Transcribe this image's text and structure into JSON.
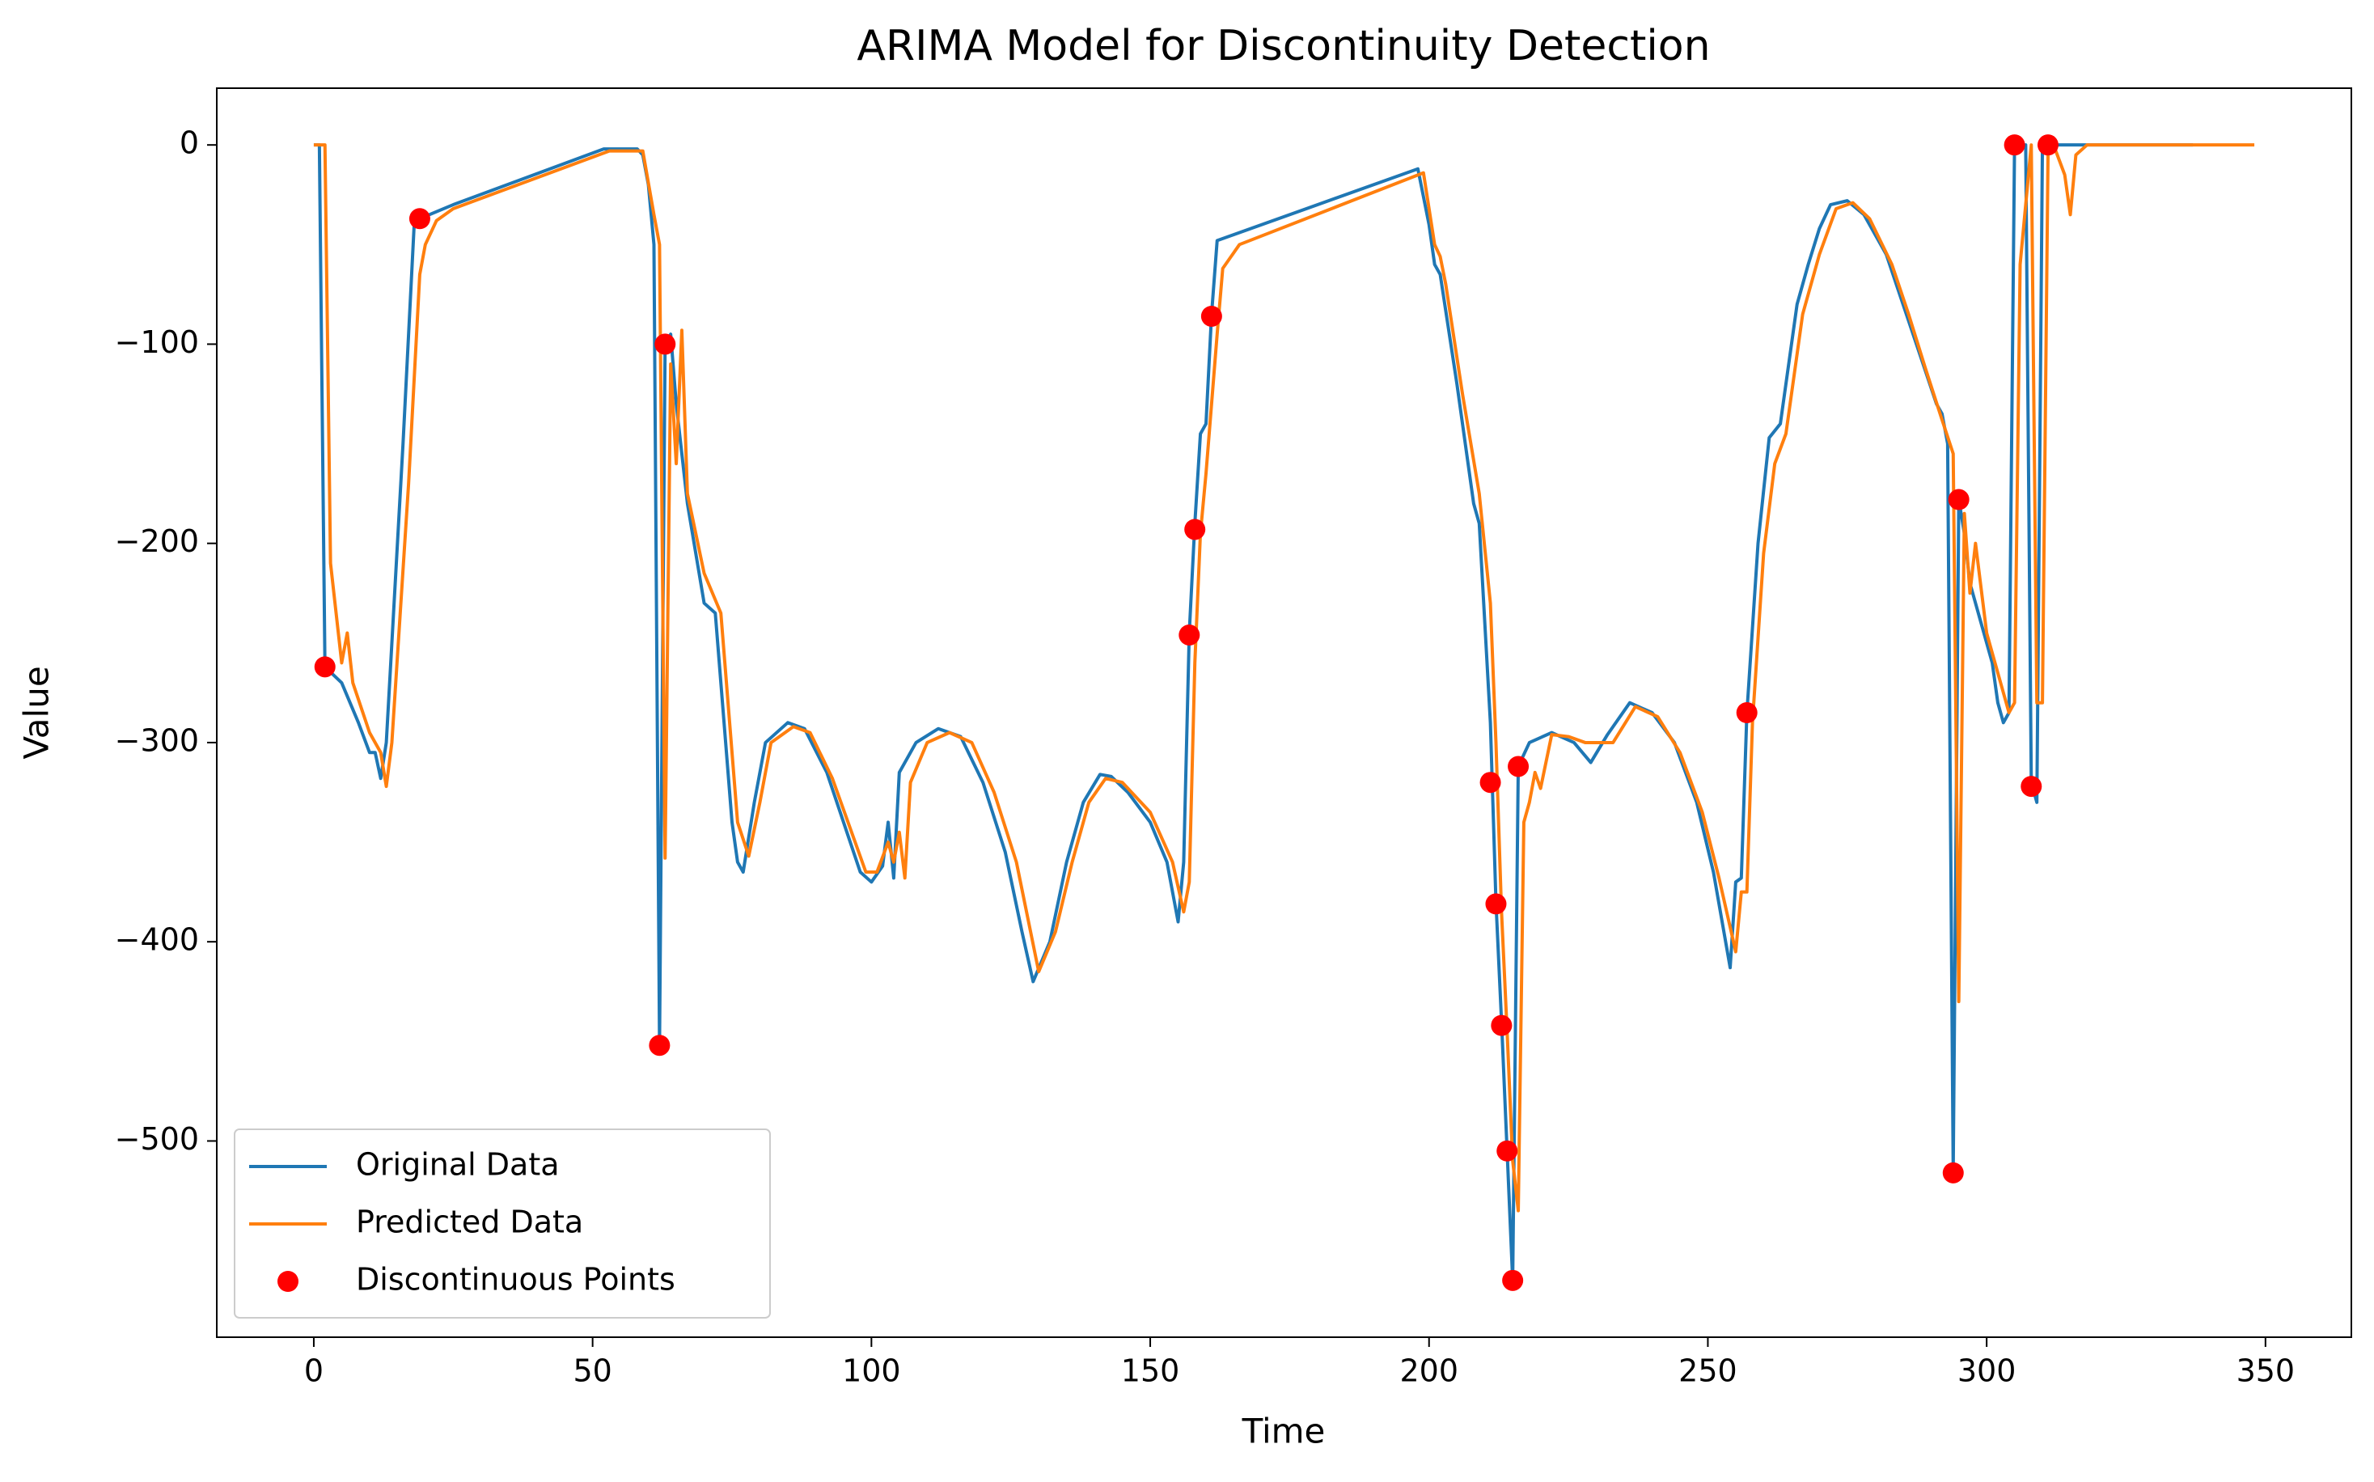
{
  "chart_data": {
    "type": "line",
    "title": "ARIMA Model for Discontinuity Detection",
    "xlabel": "Time",
    "ylabel": "Value",
    "xlim": [
      -17.4,
      365.4
    ],
    "ylim": [
      -598.5,
      28.5
    ],
    "xticks": [
      0,
      50,
      100,
      150,
      200,
      250,
      300,
      350
    ],
    "yticks": [
      {
        "value": -500,
        "label": "−500"
      },
      {
        "value": -400,
        "label": "−400"
      },
      {
        "value": -300,
        "label": "−300"
      },
      {
        "value": -200,
        "label": "−200"
      },
      {
        "value": -100,
        "label": "−100"
      },
      0
    ],
    "grid": false,
    "legend": "lower left",
    "series": [
      {
        "name": "Original Data",
        "type": "line",
        "color": "#1f77b4",
        "x": [
          0,
          1,
          2,
          5,
          8,
          10,
          11,
          12,
          13,
          16,
          18,
          19,
          25,
          52,
          58,
          59,
          60,
          61,
          62,
          63,
          64,
          65,
          67,
          70,
          72,
          75,
          76,
          77,
          79,
          81,
          85,
          88,
          92,
          95,
          98,
          100,
          102,
          103,
          104,
          105,
          108,
          112,
          116,
          120,
          124,
          127,
          129,
          132,
          135,
          138,
          141,
          143,
          146,
          150,
          153,
          155,
          156,
          157,
          158,
          159,
          160,
          161,
          162,
          165,
          198,
          200,
          201,
          202,
          205,
          208,
          209,
          211,
          212,
          213,
          214,
          215,
          216,
          218,
          222,
          226,
          229,
          232,
          236,
          240,
          244,
          248,
          251,
          254,
          255,
          256,
          257,
          259,
          261,
          263,
          266,
          268,
          270,
          272,
          275,
          278,
          282,
          285,
          288,
          291,
          292,
          293,
          294,
          295,
          296,
          297,
          299,
          301,
          302,
          303,
          304,
          305,
          306,
          307,
          308,
          309,
          310,
          311,
          320,
          337
        ],
        "values": [
          0,
          0,
          -262,
          -270,
          -290,
          -305,
          -305,
          -318,
          -300,
          -150,
          -40,
          -37,
          -30,
          -2,
          -2,
          -5,
          -20,
          -50,
          -452,
          -100,
          -95,
          -130,
          -180,
          -230,
          -235,
          -340,
          -360,
          -365,
          -330,
          -300,
          -290,
          -293,
          -315,
          -340,
          -365,
          -370,
          -362,
          -340,
          -368,
          -315,
          -300,
          -293,
          -297,
          -320,
          -355,
          -395,
          -420,
          -400,
          -360,
          -330,
          -316,
          -317,
          -325,
          -340,
          -360,
          -390,
          -360,
          -245,
          -190,
          -145,
          -140,
          -85,
          -48,
          -45,
          -12,
          -40,
          -60,
          -65,
          -120,
          -180,
          -190,
          -290,
          -380,
          -440,
          -505,
          -570,
          -312,
          -300,
          -295,
          -300,
          -310,
          -296,
          -280,
          -285,
          -300,
          -330,
          -365,
          -413,
          -370,
          -368,
          -285,
          -200,
          -147,
          -140,
          -80,
          -60,
          -42,
          -30,
          -28,
          -35,
          -55,
          -80,
          -105,
          -130,
          -135,
          -150,
          -515,
          -178,
          -195,
          -220,
          -240,
          -260,
          -280,
          -290,
          -285,
          0,
          0,
          0,
          -320,
          -330,
          0,
          0,
          0,
          0
        ]
      },
      {
        "name": "Predicted Data",
        "type": "line",
        "color": "#ff7f0e",
        "x": [
          0,
          1,
          2,
          3,
          5,
          6,
          7,
          10,
          12,
          13,
          14,
          17,
          19,
          20,
          22,
          25,
          53,
          59,
          61,
          62,
          63,
          64,
          65,
          66,
          67,
          70,
          73,
          76,
          78,
          80,
          82,
          86,
          89,
          93,
          99,
          101,
          103,
          104,
          105,
          106,
          107,
          110,
          114,
          118,
          122,
          126,
          130,
          133,
          136,
          139,
          142,
          145,
          150,
          154,
          156,
          157,
          158,
          159,
          160,
          162,
          163,
          166,
          199,
          201,
          202,
          203,
          206,
          209,
          211,
          212,
          213,
          214,
          215,
          216,
          217,
          218,
          219,
          220,
          222,
          225,
          228,
          233,
          237,
          241,
          245,
          249,
          252,
          255,
          256,
          257,
          258,
          260,
          262,
          264,
          267,
          270,
          273,
          276,
          279,
          283,
          286,
          289,
          292,
          294,
          295,
          296,
          297,
          298,
          300,
          302,
          304,
          305,
          306,
          307,
          308,
          309,
          310,
          311,
          312,
          314,
          315,
          316,
          318,
          348
        ],
        "values": [
          0,
          0,
          0,
          -210,
          -260,
          -245,
          -270,
          -295,
          -305,
          -322,
          -300,
          -170,
          -65,
          -50,
          -38,
          -32,
          -3,
          -3,
          -35,
          -50,
          -358,
          -110,
          -160,
          -93,
          -175,
          -215,
          -235,
          -340,
          -357,
          -330,
          -300,
          -292,
          -295,
          -318,
          -365,
          -365,
          -350,
          -360,
          -345,
          -368,
          -320,
          -300,
          -295,
          -300,
          -325,
          -360,
          -415,
          -395,
          -360,
          -330,
          -318,
          -320,
          -335,
          -360,
          -385,
          -370,
          -260,
          -195,
          -165,
          -95,
          -62,
          -50,
          -14,
          -50,
          -56,
          -70,
          -125,
          -175,
          -230,
          -300,
          -385,
          -445,
          -510,
          -535,
          -340,
          -330,
          -315,
          -323,
          -296,
          -297,
          -300,
          -300,
          -282,
          -287,
          -305,
          -335,
          -368,
          -405,
          -375,
          -375,
          -290,
          -205,
          -160,
          -145,
          -85,
          -55,
          -32,
          -29,
          -37,
          -60,
          -85,
          -112,
          -138,
          -155,
          -430,
          -185,
          -225,
          -200,
          -245,
          -265,
          -285,
          -280,
          -60,
          -30,
          0,
          -280,
          -280,
          -5,
          0,
          -15,
          -35,
          -5,
          0,
          0
        ]
      },
      {
        "name": "Discontinuous Points",
        "type": "scatter",
        "color": "#ff0000",
        "x": [
          2,
          19,
          62,
          63,
          157,
          158,
          161,
          211,
          212,
          213,
          214,
          215,
          216,
          257,
          294,
          295,
          305,
          308,
          311
        ],
        "values": [
          -262,
          -37,
          -452,
          -100,
          -246,
          -193,
          -86,
          -320,
          -381,
          -442,
          -505,
          -570,
          -312,
          -285,
          -516,
          -178,
          0,
          -322,
          0
        ]
      }
    ]
  }
}
